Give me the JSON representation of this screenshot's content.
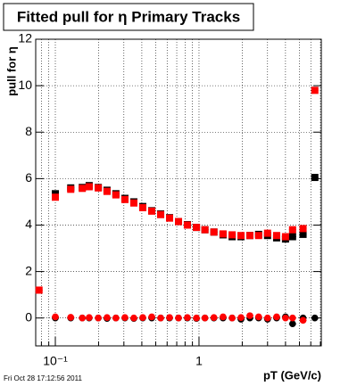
{
  "chart_data": {
    "type": "scatter",
    "title": "Fitted pull for η  Primary Tracks",
    "y_label": "pull for η",
    "x_label": "pT (GeV/c)",
    "footer": "Fri Oct 28 17:12:56 2011",
    "xlog": true,
    "grid": true,
    "xlim": [
      0.073,
      7.1
    ],
    "ylim": [
      -1.2,
      12
    ],
    "xticks": [
      {
        "value": 0.1,
        "label": "10⁻¹"
      },
      1
    ],
    "yticks": [
      0,
      2,
      4,
      6,
      8,
      10,
      12
    ],
    "x": [
      0.077,
      0.1,
      0.128,
      0.154,
      0.172,
      0.199,
      0.229,
      0.264,
      0.305,
      0.352,
      0.406,
      0.469,
      0.541,
      0.624,
      0.72,
      0.83,
      0.96,
      1.1,
      1.27,
      1.47,
      1.7,
      1.96,
      2.26,
      2.6,
      3.0,
      3.47,
      4.0,
      4.48,
      5.3,
      6.4
    ],
    "series": [
      {
        "color": "#000000",
        "marker": "square",
        "values": [
          null,
          5.35,
          5.6,
          5.62,
          5.7,
          5.62,
          5.5,
          5.35,
          5.15,
          5.0,
          4.8,
          4.62,
          4.48,
          4.32,
          4.15,
          4.02,
          3.9,
          3.8,
          3.7,
          3.58,
          3.5,
          3.5,
          3.55,
          3.6,
          3.55,
          3.45,
          3.4,
          3.5,
          3.6,
          6.05
        ]
      },
      {
        "color": "#000000",
        "marker": "circle",
        "values": [
          null,
          0.0,
          0.0,
          0.0,
          0.0,
          0.0,
          -0.02,
          0.0,
          0.0,
          -0.02,
          0.0,
          0.0,
          0.0,
          0.0,
          0.0,
          0.0,
          -0.02,
          0.0,
          0.0,
          0.0,
          0.0,
          -0.05,
          0.0,
          0.0,
          -0.05,
          0.0,
          0.05,
          -0.25,
          0.0,
          0.0
        ]
      },
      {
        "color": "#ff0000",
        "marker": "square",
        "values": [
          1.2,
          5.2,
          5.54,
          5.58,
          5.65,
          5.6,
          5.45,
          5.3,
          5.1,
          4.95,
          4.75,
          4.6,
          4.45,
          4.3,
          4.15,
          4.0,
          3.9,
          3.8,
          3.7,
          3.62,
          3.58,
          3.55,
          3.55,
          3.55,
          3.65,
          3.55,
          3.5,
          3.8,
          3.85,
          9.8
        ]
      },
      {
        "color": "#ff0000",
        "marker": "circle",
        "values": [
          null,
          0.05,
          0.03,
          0.0,
          0.02,
          0.0,
          0.02,
          0.0,
          0.02,
          0.0,
          0.02,
          0.05,
          0.0,
          0.02,
          0.0,
          0.02,
          0.0,
          0.0,
          0.02,
          0.05,
          0.0,
          0.02,
          0.1,
          0.05,
          0.0,
          0.05,
          0.0,
          0.0,
          -0.1,
          null
        ]
      }
    ]
  }
}
